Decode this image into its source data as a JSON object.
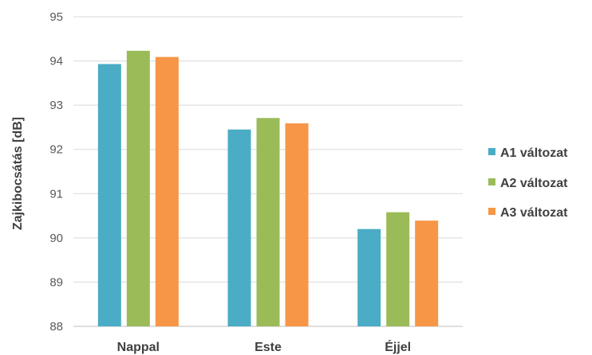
{
  "chart_data": {
    "type": "bar",
    "title": "",
    "xlabel": "",
    "ylabel": "Zajkibocsátás  [dB]",
    "ylim": [
      88,
      95
    ],
    "yticks": [
      88,
      89,
      90,
      91,
      92,
      93,
      94,
      95
    ],
    "categories": [
      "Nappal",
      "Este",
      "Éjjel"
    ],
    "series": [
      {
        "name": "A1 változat",
        "color": "#4BACC6",
        "values": [
          93.93,
          92.45,
          90.2
        ]
      },
      {
        "name": "A2 változat",
        "color": "#9BBB59",
        "values": [
          94.23,
          92.71,
          90.58
        ]
      },
      {
        "name": "A3 változat",
        "color": "#F79646",
        "values": [
          94.09,
          92.59,
          90.39
        ]
      }
    ],
    "grid": true,
    "legend_position": "right"
  }
}
